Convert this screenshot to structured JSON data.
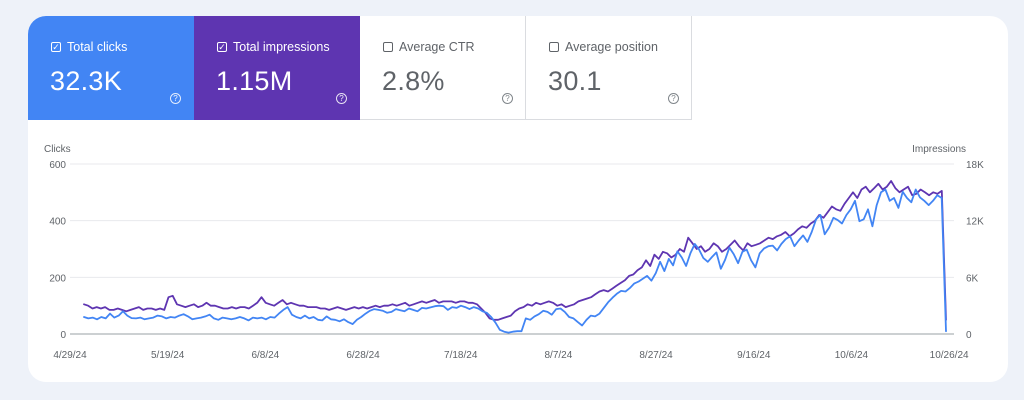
{
  "metrics": [
    {
      "label": "Total clicks",
      "value": "32.3K",
      "checked": true,
      "color": "#4285f4"
    },
    {
      "label": "Total impressions",
      "value": "1.15M",
      "checked": true,
      "color": "#5e35b1"
    },
    {
      "label": "Average CTR",
      "value": "2.8%",
      "checked": false
    },
    {
      "label": "Average position",
      "value": "30.1",
      "checked": false
    }
  ],
  "help_glyph": "?",
  "check_glyph": "✓",
  "chart_data": {
    "type": "line",
    "title": "",
    "left_axis_label": "Clicks",
    "right_axis_label": "Impressions",
    "left_ticks": [
      "0",
      "200",
      "400",
      "600"
    ],
    "right_ticks": [
      "0",
      "6K",
      "12K",
      "18K"
    ],
    "ylim_left": [
      0,
      600
    ],
    "ylim_right": [
      0,
      18000
    ],
    "x_tick_labels": [
      "4/29/24",
      "5/19/24",
      "6/8/24",
      "6/28/24",
      "7/18/24",
      "8/7/24",
      "8/27/24",
      "9/16/24",
      "10/6/24",
      "10/26/24"
    ],
    "x_start": "4/29/24",
    "x_end": "10/27/24",
    "grid": true,
    "series": [
      {
        "name": "Clicks",
        "axis": "left",
        "color": "#4285f4",
        "values": [
          60,
          55,
          58,
          52,
          60,
          55,
          72,
          58,
          65,
          80,
          65,
          56,
          55,
          58,
          52,
          55,
          58,
          65,
          62,
          55,
          60,
          58,
          65,
          70,
          62,
          52,
          55,
          58,
          62,
          68,
          55,
          50,
          58,
          55,
          52,
          55,
          60,
          55,
          48,
          58,
          55,
          58,
          52,
          60,
          58,
          72,
          85,
          95,
          68,
          60,
          55,
          65,
          55,
          60,
          50,
          48,
          62,
          52,
          50,
          45,
          52,
          42,
          35,
          50,
          60,
          72,
          82,
          88,
          85,
          82,
          75,
          78,
          88,
          84,
          80,
          90,
          85,
          80,
          92,
          90,
          94,
          98,
          100,
          98,
          85,
          95,
          92,
          100,
          95,
          88,
          95,
          90,
          80,
          75,
          60,
          40,
          15,
          8,
          5,
          8,
          10,
          10,
          55,
          50,
          62,
          70,
          82,
          78,
          68,
          88,
          90,
          78,
          60,
          55,
          42,
          30,
          50,
          65,
          62,
          72,
          92,
          112,
          128,
          142,
          152,
          150,
          162,
          178,
          185,
          195,
          205,
          188,
          215,
          255,
          222,
          265,
          242,
          292,
          270,
          240,
          285,
          318,
          298,
          268,
          255,
          272,
          288,
          230,
          262,
          305,
          282,
          250,
          290,
          298,
          260,
          235,
          285,
          302,
          310,
          312,
          295,
          318,
          335,
          345,
          310,
          330,
          348,
          325,
          360,
          405,
          420,
          352,
          375,
          410,
          402,
          390,
          420,
          440,
          470,
          398,
          405,
          440,
          380,
          455,
          500,
          510,
          470,
          480,
          445,
          502,
          480,
          465,
          510,
          482,
          470,
          455,
          470,
          490,
          480,
          10
        ]
      },
      {
        "name": "Impressions",
        "axis": "right",
        "color": "#5e35b1",
        "values": [
          3150,
          3000,
          2700,
          2850,
          2700,
          2850,
          2550,
          2550,
          2700,
          2550,
          2400,
          2550,
          2700,
          2850,
          2550,
          2700,
          2700,
          2550,
          2700,
          2550,
          3900,
          4050,
          3150,
          3000,
          2850,
          3000,
          3150,
          2850,
          3000,
          3300,
          3000,
          3000,
          2850,
          2700,
          2700,
          2850,
          2700,
          2850,
          2850,
          2700,
          3000,
          3300,
          3900,
          3300,
          3150,
          3000,
          3300,
          3600,
          3150,
          3300,
          3150,
          3000,
          3000,
          2850,
          2850,
          2850,
          2700,
          2700,
          2550,
          2700,
          2850,
          2700,
          2550,
          2700,
          2850,
          2700,
          2850,
          2700,
          2850,
          3000,
          2850,
          3000,
          3000,
          3150,
          3000,
          3150,
          3300,
          3000,
          3150,
          3300,
          3450,
          3300,
          3450,
          3600,
          3300,
          3450,
          3450,
          3450,
          3300,
          3450,
          3450,
          3300,
          3300,
          3150,
          2700,
          2250,
          1650,
          1500,
          1500,
          1650,
          1800,
          1950,
          2400,
          2700,
          2850,
          3150,
          3000,
          3300,
          3150,
          3300,
          3450,
          3300,
          3000,
          3150,
          2850,
          3000,
          3150,
          3450,
          3600,
          3750,
          3900,
          4200,
          4500,
          4650,
          4500,
          4800,
          5100,
          5400,
          5700,
          6150,
          6300,
          6750,
          7050,
          7800,
          7200,
          8400,
          7950,
          8700,
          8550,
          8100,
          8400,
          9000,
          8700,
          10200,
          9600,
          9000,
          9300,
          8700,
          9000,
          9600,
          9300,
          8700,
          9000,
          9450,
          9900,
          9300,
          8850,
          9600,
          9300,
          9450,
          9600,
          9900,
          10200,
          10050,
          10350,
          10500,
          10800,
          10350,
          10650,
          11100,
          11400,
          11250,
          11700,
          12000,
          12600,
          12300,
          12900,
          13500,
          13200,
          13050,
          13800,
          14400,
          15000,
          14400,
          15300,
          15600,
          15000,
          15450,
          15900,
          15300,
          15600,
          16200,
          15450,
          15000,
          15300,
          15600,
          14700,
          14850,
          15300,
          15000,
          14700,
          15000,
          14850,
          15150,
          1500
        ]
      }
    ]
  }
}
